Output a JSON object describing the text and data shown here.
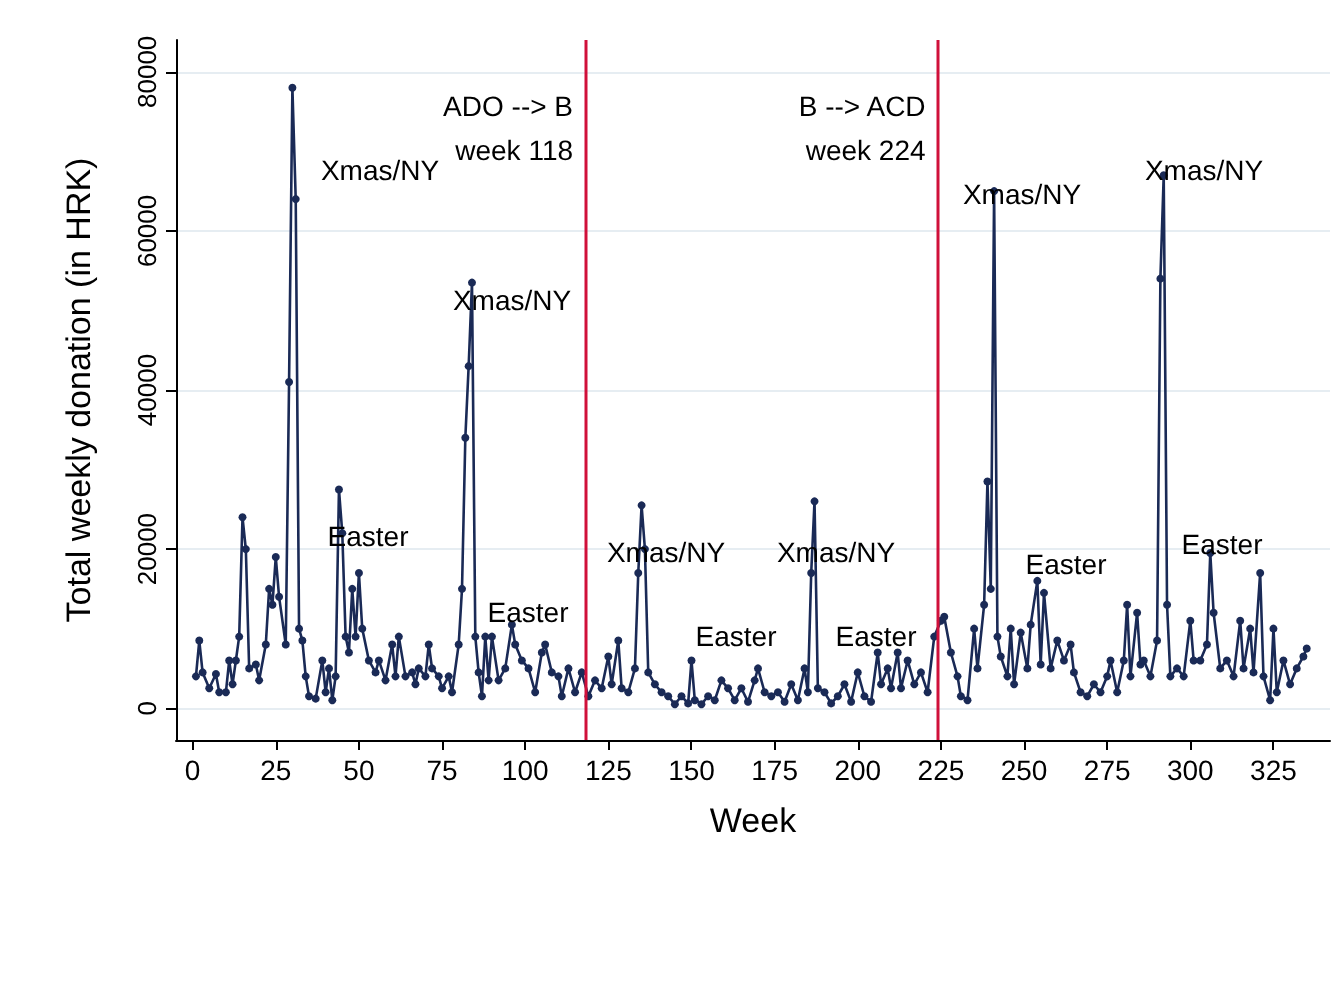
{
  "chart_data": {
    "type": "line",
    "xlabel": "Week",
    "ylabel": "Total weekly donation (in HRK)",
    "xlim": [
      -5,
      342
    ],
    "xticks": [
      0,
      25,
      50,
      75,
      100,
      125,
      150,
      175,
      200,
      225,
      250,
      275,
      300,
      325
    ],
    "ylim": [
      -4000,
      84000
    ],
    "yticks": [
      0,
      20000,
      40000,
      60000,
      80000
    ],
    "grid": "y",
    "marker": "circle",
    "line_style": "solid",
    "series": [
      {
        "color": "#1a2a56",
        "x": [
          1,
          2,
          3,
          5,
          7,
          8,
          10,
          11,
          12,
          13,
          14,
          15,
          16,
          17,
          19,
          20,
          22,
          23,
          24,
          25,
          26,
          28,
          29,
          30,
          31,
          32,
          33,
          34,
          35,
          37,
          39,
          40,
          41,
          42,
          43,
          44,
          45,
          46,
          47,
          48,
          49,
          50,
          51,
          53,
          55,
          56,
          58,
          60,
          61,
          62,
          64,
          66,
          67,
          68,
          70,
          71,
          72,
          74,
          75,
          77,
          78,
          80,
          81,
          82,
          83,
          84,
          85,
          86,
          87,
          88,
          89,
          90,
          92,
          94,
          96,
          97,
          99,
          101,
          103,
          105,
          106,
          108,
          110,
          111,
          113,
          115,
          117,
          119,
          121,
          123,
          125,
          126,
          128,
          129,
          131,
          133,
          134,
          135,
          136,
          137,
          139,
          141,
          143,
          145,
          147,
          149,
          150,
          151,
          153,
          155,
          157,
          159,
          161,
          163,
          165,
          167,
          169,
          170,
          172,
          174,
          176,
          178,
          180,
          182,
          184,
          185,
          186,
          187,
          188,
          190,
          192,
          194,
          196,
          198,
          200,
          202,
          204,
          206,
          207,
          209,
          210,
          212,
          213,
          215,
          217,
          219,
          221,
          223,
          225,
          226,
          228,
          230,
          231,
          233,
          235,
          236,
          238,
          239,
          240,
          241,
          242,
          243,
          245,
          246,
          247,
          249,
          251,
          252,
          254,
          255,
          256,
          258,
          260,
          262,
          264,
          265,
          267,
          269,
          271,
          273,
          275,
          276,
          278,
          280,
          281,
          282,
          284,
          285,
          286,
          288,
          290,
          291,
          292,
          293,
          294,
          296,
          298,
          300,
          301,
          303,
          305,
          306,
          307,
          309,
          311,
          313,
          315,
          316,
          318,
          319,
          321,
          322,
          324,
          325,
          326,
          328,
          330,
          332,
          334,
          335
        ],
        "values": [
          4000,
          8500,
          4500,
          2500,
          4300,
          2000,
          2000,
          6000,
          3000,
          6000,
          9000,
          24000,
          20000,
          5000,
          5500,
          3500,
          8000,
          15000,
          13000,
          19000,
          14000,
          8000,
          41000,
          78000,
          64000,
          10000,
          8500,
          4000,
          1500,
          1200,
          6000,
          2000,
          5000,
          1000,
          4000,
          27500,
          22000,
          9000,
          7000,
          15000,
          9000,
          17000,
          10000,
          6000,
          4500,
          6000,
          3500,
          8000,
          4000,
          9000,
          4000,
          4500,
          3000,
          5000,
          4000,
          8000,
          5000,
          4000,
          2500,
          4000,
          2000,
          8000,
          15000,
          34000,
          43000,
          53500,
          9000,
          4500,
          1500,
          9000,
          3500,
          9000,
          3500,
          5000,
          10500,
          8000,
          6000,
          5000,
          2000,
          7000,
          8000,
          4500,
          4000,
          1500,
          5000,
          2000,
          4500,
          1500,
          3500,
          2500,
          6500,
          3000,
          8500,
          2500,
          2000,
          5000,
          17000,
          25500,
          20000,
          4500,
          3000,
          2000,
          1500,
          500,
          1500,
          600,
          6000,
          1000,
          500,
          1500,
          1000,
          3500,
          2500,
          1000,
          2500,
          800,
          3500,
          5000,
          2000,
          1500,
          2000,
          800,
          3000,
          1000,
          5000,
          2000,
          17000,
          26000,
          2500,
          2000,
          600,
          1500,
          3000,
          800,
          4500,
          1500,
          800,
          7000,
          3000,
          5000,
          2500,
          7000,
          2500,
          6000,
          3000,
          4500,
          2000,
          9000,
          11000,
          11500,
          7000,
          4000,
          1500,
          1000,
          10000,
          5000,
          13000,
          28500,
          15000,
          65000,
          9000,
          6500,
          4000,
          10000,
          3000,
          9500,
          5000,
          10500,
          16000,
          5500,
          14500,
          5000,
          8500,
          6000,
          8000,
          4500,
          2000,
          1500,
          3000,
          2000,
          4000,
          6000,
          2000,
          6000,
          13000,
          4000,
          12000,
          5500,
          6000,
          4000,
          8500,
          54000,
          67000,
          13000,
          4000,
          5000,
          4000,
          11000,
          6000,
          6000,
          8000,
          19500,
          12000,
          5000,
          6000,
          4000,
          11000,
          5000,
          10000,
          4500,
          17000,
          4000,
          1000,
          10000,
          2000,
          6000,
          3000,
          5000,
          6500,
          7500
        ]
      }
    ],
    "ref_lines": [
      {
        "axis": "x",
        "value": 118,
        "label": "ADO --> B\nweek 118",
        "color": "#d0103a"
      },
      {
        "axis": "x",
        "value": 224,
        "label": "B --> ACD\nweek 224",
        "color": "#d0103a"
      }
    ],
    "annotations": [
      "Xmas/NY",
      "Easter",
      "Xmas/NY",
      "Easter",
      "Xmas/NY",
      "Easter",
      "Xmas/NY",
      "Easter",
      "Xmas/NY",
      "Easter",
      "Xmas/NY",
      "Easter"
    ]
  }
}
